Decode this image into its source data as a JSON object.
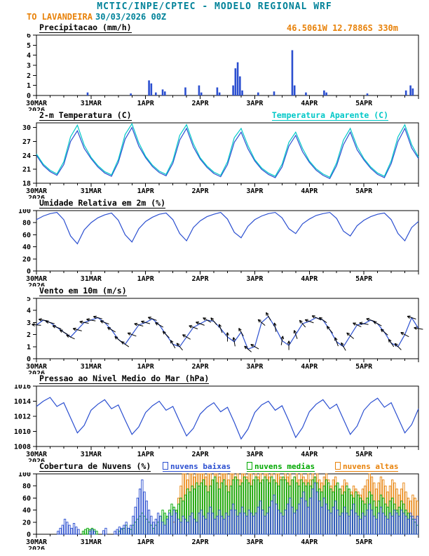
{
  "header": {
    "title": "MCTIC/INPE/CPTEC - MODELO REGIONAL WRF",
    "station": "TO LAVANDEIRA",
    "run": "30/03/2026 00Z",
    "coords": "46.5061W 12.7886S 330m"
  },
  "colors": {
    "teal": "#008299",
    "orange": "#e8820a",
    "blue": "#2b4fd0",
    "cyan": "#00c8c8",
    "green": "#00a800",
    "black": "#000000"
  },
  "x_axis": {
    "total_hours": 168,
    "minor_step": 6,
    "day_ticks": [
      0,
      24,
      48,
      72,
      96,
      120,
      144,
      168
    ],
    "labels": [
      {
        "h": 0,
        "text": "30MAR",
        "sub": "2026"
      },
      {
        "h": 24,
        "text": "31MAR"
      },
      {
        "h": 48,
        "text": "1APR"
      },
      {
        "h": 72,
        "text": "2APR"
      },
      {
        "h": 96,
        "text": "3APR"
      },
      {
        "h": 120,
        "text": "4APR"
      },
      {
        "h": 144,
        "text": "5APR"
      }
    ]
  },
  "chart_data": [
    {
      "id": "precip",
      "type": "bar",
      "title": "Precipitacao (mm/h)",
      "ylabel": "mm/h",
      "ylim": [
        0,
        6
      ],
      "yticks": [
        0,
        1,
        2,
        3,
        4,
        5,
        6
      ],
      "color": "#2b4fd0",
      "values": {
        "22": 0.3,
        "41": 0.2,
        "49": 1.5,
        "50": 1.2,
        "52": 0.3,
        "55": 0.6,
        "56": 0.4,
        "65": 0.8,
        "71": 1.0,
        "72": 0.3,
        "79": 0.8,
        "80": 0.3,
        "86": 1.0,
        "87": 2.7,
        "88": 3.3,
        "89": 1.9,
        "90": 0.5,
        "97": 0.3,
        "104": 0.4,
        "112": 4.5,
        "113": 1.0,
        "118": 0.3,
        "126": 0.5,
        "127": 0.3,
        "145": 0.2,
        "162": 0.5,
        "164": 1.0,
        "165": 0.7
      }
    },
    {
      "id": "temp",
      "type": "line",
      "title": "2-m Temperatura (C)",
      "ylim": [
        18,
        31
      ],
      "yticks": [
        18,
        21,
        24,
        27,
        30
      ],
      "series": [
        {
          "name": "2-m Temperatura (C)",
          "color": "#2b4fd0",
          "step_hours": 3,
          "values": [
            24.0,
            21.8,
            20.5,
            19.7,
            22.0,
            27.0,
            29.3,
            25.5,
            23.3,
            21.5,
            20.2,
            19.5,
            22.5,
            27.5,
            30.0,
            26.0,
            23.5,
            21.6,
            20.3,
            19.6,
            22.3,
            27.3,
            29.8,
            25.8,
            23.2,
            21.4,
            20.1,
            19.4,
            22.0,
            26.8,
            29.0,
            25.4,
            22.8,
            21.0,
            19.9,
            19.2,
            21.5,
            26.0,
            28.3,
            24.8,
            22.5,
            20.8,
            19.7,
            19.0,
            21.8,
            26.3,
            29.0,
            25.2,
            23.0,
            21.2,
            19.9,
            19.2,
            22.2,
            27.0,
            29.8,
            25.6,
            23.3
          ]
        },
        {
          "name": "Temperatura Aparente (C)",
          "color": "#00c8c8",
          "step_hours": 3,
          "values": [
            24.3,
            22.1,
            20.8,
            20.0,
            22.6,
            28.0,
            30.5,
            26.2,
            23.6,
            21.8,
            20.5,
            19.8,
            23.1,
            28.5,
            30.8,
            26.7,
            23.8,
            21.9,
            20.6,
            19.9,
            22.9,
            28.3,
            30.6,
            26.5,
            23.5,
            21.7,
            20.4,
            19.7,
            22.6,
            27.8,
            29.8,
            26.1,
            23.1,
            21.3,
            20.2,
            19.5,
            22.1,
            26.8,
            29.0,
            25.5,
            22.8,
            21.1,
            20.0,
            19.3,
            22.4,
            27.3,
            29.8,
            25.9,
            23.3,
            21.5,
            20.2,
            19.5,
            22.8,
            28.0,
            30.6,
            26.3,
            23.6
          ]
        }
      ]
    },
    {
      "id": "rh",
      "type": "line",
      "title": "Umidade Relativa em 2m (%)",
      "ylim": [
        0,
        100
      ],
      "yticks": [
        0,
        20,
        40,
        60,
        80,
        100
      ],
      "series": [
        {
          "name": "Umidade Relativa em 2m (%)",
          "color": "#2b4fd0",
          "step_hours": 3,
          "values": [
            85,
            91,
            95,
            97,
            85,
            58,
            45,
            68,
            80,
            88,
            93,
            96,
            84,
            60,
            48,
            70,
            82,
            89,
            94,
            96,
            85,
            62,
            50,
            72,
            83,
            90,
            94,
            97,
            86,
            64,
            55,
            74,
            85,
            91,
            95,
            97,
            88,
            70,
            62,
            78,
            86,
            92,
            95,
            97,
            87,
            66,
            58,
            75,
            84,
            90,
            94,
            96,
            85,
            62,
            50,
            72,
            82
          ]
        }
      ]
    },
    {
      "id": "wind",
      "type": "wind",
      "title": "Vento em 10m (m/s)",
      "ylim": [
        0,
        5
      ],
      "yticks": [
        0,
        1,
        2,
        3,
        4,
        5
      ],
      "series": [
        {
          "name": "Vento em 10m (m/s)",
          "color": "#2b4fd0",
          "step_hours": 3,
          "values": [
            2.8,
            3.2,
            3.0,
            2.6,
            2.2,
            1.8,
            2.4,
            3.0,
            3.2,
            3.4,
            3.0,
            2.4,
            1.6,
            1.2,
            2.0,
            2.8,
            3.0,
            3.3,
            2.8,
            2.0,
            1.2,
            1.0,
            1.8,
            2.6,
            2.9,
            3.2,
            3.1,
            2.5,
            1.8,
            1.4,
            2.2,
            0.8,
            1.0,
            3.0,
            3.5,
            2.6,
            1.5,
            1.1,
            2.0,
            2.9,
            3.1,
            3.4,
            3.2,
            2.4,
            1.4,
            1.0,
            1.9,
            2.8,
            2.9,
            3.2,
            2.9,
            2.2,
            1.3,
            1.0,
            2.0,
            3.4,
            2.5
          ]
        }
      ],
      "directions_deg": [
        95,
        100,
        105,
        110,
        120,
        115,
        105,
        100,
        100,
        105,
        110,
        120,
        130,
        125,
        110,
        105,
        105,
        110,
        120,
        135,
        150,
        140,
        120,
        110,
        110,
        120,
        140,
        160,
        180,
        170,
        150,
        130,
        120,
        130,
        150,
        170,
        190,
        180,
        160,
        140,
        110,
        115,
        125,
        140,
        160,
        150,
        130,
        115,
        100,
        108,
        118,
        130,
        145,
        135,
        118,
        108,
        100
      ]
    },
    {
      "id": "slp",
      "type": "line",
      "title": "Pressao ao Nivel Medio do Mar (hPa)",
      "ylim": [
        1008,
        1016
      ],
      "yticks": [
        1008,
        1010,
        1012,
        1014,
        1016
      ],
      "series": [
        {
          "name": "Pressao ao Nivel Medio do Mar (hPa)",
          "color": "#2b4fd0",
          "step_hours": 3,
          "values": [
            1013.3,
            1014.0,
            1014.5,
            1013.3,
            1013.8,
            1011.8,
            1009.8,
            1010.8,
            1012.8,
            1013.6,
            1014.2,
            1013.0,
            1013.5,
            1011.5,
            1009.6,
            1010.6,
            1012.5,
            1013.4,
            1014.0,
            1012.8,
            1013.3,
            1011.3,
            1009.4,
            1010.4,
            1012.3,
            1013.2,
            1013.8,
            1012.6,
            1013.2,
            1011.2,
            1009.0,
            1010.3,
            1012.5,
            1013.5,
            1014.0,
            1012.8,
            1013.4,
            1011.4,
            1009.2,
            1010.5,
            1012.6,
            1013.6,
            1014.2,
            1013.0,
            1013.6,
            1011.6,
            1009.6,
            1010.7,
            1012.8,
            1013.8,
            1014.4,
            1013.2,
            1013.8,
            1011.8,
            1009.8,
            1010.9,
            1013.0
          ]
        }
      ]
    },
    {
      "id": "clouds",
      "type": "bar-outline",
      "title": "Cobertura de Nuvens (%)",
      "ylim": [
        0,
        100
      ],
      "yticks": [
        0,
        20,
        40,
        60,
        80,
        100
      ],
      "series": [
        {
          "name": "nuvens baixas",
          "color": "#2b4fd0",
          "step_hours": 1,
          "values": [
            0,
            0,
            0,
            0,
            0,
            0,
            0,
            0,
            0,
            5,
            10,
            15,
            25,
            20,
            15,
            10,
            18,
            12,
            8,
            0,
            0,
            0,
            0,
            5,
            8,
            5,
            0,
            0,
            0,
            6,
            10,
            0,
            0,
            0,
            5,
            8,
            12,
            10,
            15,
            20,
            10,
            15,
            30,
            45,
            60,
            75,
            90,
            70,
            55,
            40,
            30,
            20,
            25,
            35,
            30,
            20,
            15,
            25,
            35,
            30,
            40,
            35,
            25,
            20,
            30,
            25,
            20,
            30,
            35,
            25,
            20,
            35,
            40,
            30,
            25,
            35,
            45,
            35,
            25,
            30,
            40,
            30,
            25,
            35,
            30,
            40,
            50,
            40,
            30,
            35,
            45,
            35,
            30,
            40,
            35,
            30,
            35,
            45,
            55,
            40,
            30,
            35,
            45,
            55,
            65,
            50,
            40,
            35,
            30,
            40,
            50,
            60,
            45,
            35,
            40,
            50,
            60,
            70,
            55,
            45,
            60,
            75,
            85,
            70,
            55,
            45,
            60,
            50,
            40,
            35,
            45,
            55,
            40,
            30,
            35,
            45,
            35,
            30,
            40,
            50,
            35,
            30,
            25,
            35,
            30,
            40,
            50,
            40,
            30,
            25,
            35,
            45,
            35,
            30,
            25,
            35,
            30,
            40,
            35,
            30,
            40,
            35,
            30,
            25,
            35,
            30,
            25,
            30
          ]
        },
        {
          "name": "nuvens medias",
          "color": "#00a800",
          "step_hours": 1,
          "values": [
            0,
            0,
            0,
            0,
            0,
            0,
            0,
            0,
            0,
            0,
            0,
            0,
            0,
            0,
            0,
            0,
            0,
            0,
            0,
            0,
            5,
            8,
            10,
            8,
            10,
            8,
            5,
            0,
            0,
            0,
            0,
            0,
            0,
            0,
            0,
            0,
            5,
            8,
            10,
            15,
            10,
            8,
            15,
            20,
            25,
            30,
            35,
            30,
            25,
            20,
            15,
            10,
            15,
            20,
            30,
            40,
            35,
            30,
            40,
            50,
            45,
            40,
            50,
            60,
            55,
            65,
            75,
            70,
            80,
            75,
            85,
            80,
            85,
            90,
            80,
            70,
            80,
            90,
            95,
            85,
            75,
            85,
            90,
            80,
            70,
            80,
            90,
            95,
            90,
            80,
            85,
            95,
            90,
            85,
            80,
            90,
            95,
            90,
            85,
            90,
            95,
            90,
            85,
            95,
            90,
            85,
            80,
            90,
            95,
            90,
            85,
            80,
            90,
            95,
            85,
            80,
            90,
            85,
            80,
            85,
            80,
            90,
            95,
            85,
            75,
            70,
            80,
            90,
            85,
            75,
            70,
            80,
            85,
            75,
            65,
            70,
            80,
            75,
            65,
            60,
            70,
            65,
            60,
            55,
            50,
            60,
            70,
            65,
            55,
            45,
            55,
            65,
            60,
            50,
            45,
            55,
            60,
            50,
            40,
            45,
            55,
            50,
            40,
            35,
            30,
            25,
            20,
            15
          ]
        },
        {
          "name": "nuvens altas",
          "color": "#e8820a",
          "step_hours": 1,
          "values": [
            0,
            0,
            0,
            0,
            0,
            0,
            0,
            0,
            0,
            0,
            0,
            0,
            0,
            0,
            0,
            0,
            0,
            0,
            0,
            0,
            0,
            0,
            0,
            0,
            0,
            0,
            0,
            0,
            0,
            0,
            0,
            0,
            0,
            0,
            0,
            0,
            0,
            0,
            0,
            0,
            0,
            0,
            0,
            0,
            0,
            0,
            0,
            0,
            0,
            0,
            0,
            0,
            0,
            0,
            0,
            0,
            0,
            0,
            0,
            0,
            20,
            40,
            60,
            80,
            100,
            100,
            90,
            100,
            100,
            95,
            100,
            100,
            100,
            100,
            95,
            100,
            100,
            90,
            100,
            100,
            95,
            100,
            100,
            100,
            90,
            100,
            100,
            95,
            100,
            90,
            100,
            100,
            95,
            100,
            100,
            90,
            100,
            95,
            100,
            90,
            100,
            100,
            95,
            100,
            90,
            100,
            100,
            95,
            90,
            100,
            95,
            100,
            90,
            95,
            100,
            90,
            100,
            95,
            90,
            100,
            90,
            100,
            95,
            100,
            90,
            85,
            95,
            100,
            90,
            80,
            90,
            95,
            85,
            75,
            80,
            90,
            85,
            75,
            70,
            80,
            75,
            70,
            65,
            75,
            80,
            90,
            100,
            95,
            85,
            75,
            85,
            95,
            90,
            80,
            70,
            80,
            90,
            85,
            75,
            65,
            75,
            85,
            70,
            60,
            55,
            65,
            60,
            55
          ]
        }
      ]
    }
  ]
}
